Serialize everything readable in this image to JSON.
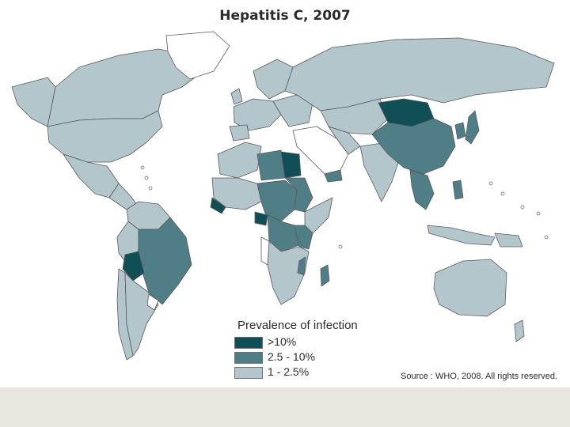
{
  "title": "Hepatitis C, 2007",
  "legend": {
    "title": "Prevalence of infection",
    "items": [
      {
        "label": ">10%",
        "color": "#0f4f55"
      },
      {
        "label": "2.5 - 10%",
        "color": "#4f7e87"
      },
      {
        "label": "1 - 2.5%",
        "color": "#b3c6cb"
      }
    ]
  },
  "source": "Source : WHO, 2008. All rights reserved.",
  "colors": {
    "high": "#0f4f55",
    "mid": "#4f7e87",
    "low": "#b3c6cb",
    "no_data": "#ffffff",
    "border": "#5a5a5a",
    "footer": "#e9e6e0"
  }
}
